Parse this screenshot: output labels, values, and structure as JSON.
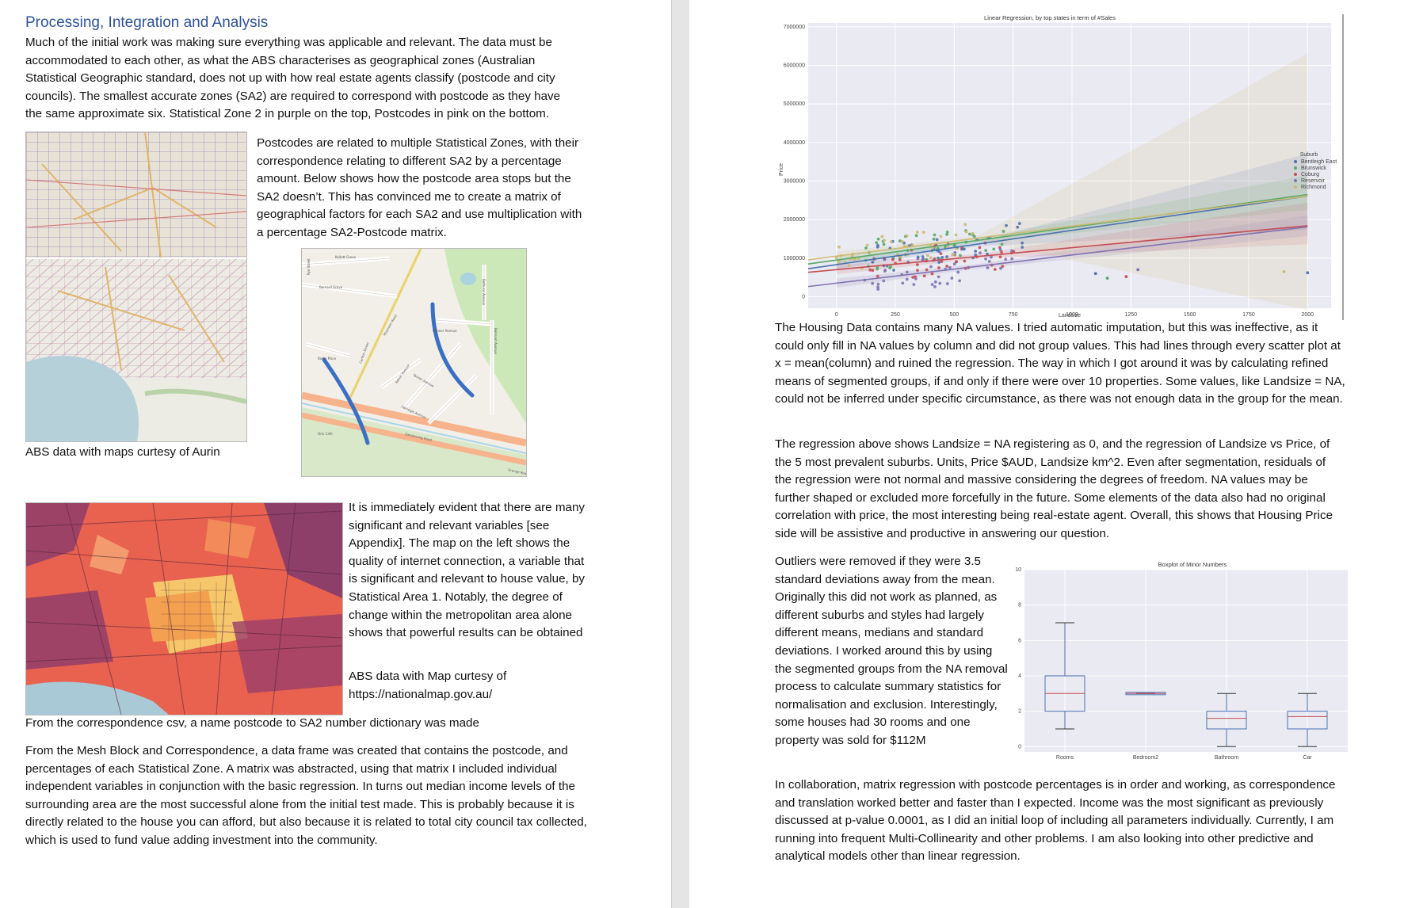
{
  "left": {
    "heading": "Processing, Integration and Analysis",
    "p1": "Much of the initial work was making sure everything was applicable and relevant. The data must be accommodated to each other, as what the ABS characterises as geographical zones (Australian Statistical Geographic standard, does not up with how real estate agents classify (postcode and city councils). The smallest accurate zones (SA2) are required to correspond with postcode as they have the same approximate six. Statistical Zone 2 in purple on the top, Postcodes in pink on the bottom.",
    "p2": "Postcodes are related to multiple Statistical Zones, with their correspondence relating to different SA2 by a percentage amount.  Below shows how the postcode area stops but the SA2 doesn’t. This has convinced me to create a matrix of geographical factors for each SA2 and use multiplication with a percentage SA2-Postcode matrix.",
    "caption1": "ABS data with maps curtesy of Aurin",
    "p3": "It is immediately evident that there are many significant and relevant variables [see Appendix]. The map on the left shows the quality of internet connection, a variable that is significant and relevant to house value, by Statistical Area 1. Notably, the degree of change within the metropolitan area alone shows that powerful results can be obtained",
    "caption2": "ABS data with Map curtesy of https://nationalmap.gov.au/",
    "p4": "From the correspondence csv, a name postcode to SA2 number dictionary was made",
    "p5": "From the Mesh Block and Correspondence, a data frame was created that contains the postcode, and percentages of each Statistical Zone. A matrix was abstracted, using that matrix I included individual independent variables in conjunction with the basic regression. In turns out median income levels of the surrounding area are the most successful alone from the initial test made. This is probably because it is directly related to the house you can afford, but also because it is related to total city council tax collected, which is used to fund value adding investment into the community.",
    "street_map": {
      "streets": [
        "Kellett Grove",
        "Barnard Grove",
        "Mountain Road",
        "Connor Avenue",
        "Kelvin Avenue",
        "Tanner Avenue",
        "Carnegie Avenue",
        "Dandenong Road",
        "Orix Cafe",
        "Grange Road",
        "Bodie Place",
        "Belmont Avenue",
        "Bethune Avenue",
        "Rye Street",
        "Carlton Street"
      ]
    }
  },
  "right": {
    "p1": "The Housing Data contains many NA values. I tried automatic imputation, but this was ineffective, as it could only fill in NA values by column and did not group values. This had lines through every scatter plot at x = mean(column) and ruined the regression. The way in which I got around it was by calculating refined means of segmented groups, if and only if there were over 10 properties. Some values, like Landsize = NA, could not be inferred under specific circumstance, as there was not enough data in the group for the mean.",
    "p2": "The regression above shows Landsize = NA registering as 0, and the regression of Landsize vs Price, of the 5 most prevalent suburbs. Units, Price $AUD, Landsize km^2. Even after segmentation, residuals of the regression were not normal and massive considering the degrees of freedom. NA values may be further shaped or excluded more forcefully in the future. Some elements of the data also had no original correlation with price, the most interesting being real-estate agent. Overall, this shows that Housing Price side will be assistive and productive in answering our question.",
    "p3": "Outliers were removed if they were 3.5 standard deviations away from the mean. Originally this did not work as planned, as different suburbs and styles had largely different means, medians and standard deviations. I worked around this by using the segmented groups from the NA removal process to calculate summary statistics for normalisation and exclusion. Interestingly, some houses had 30 rooms and one property was sold for $112M",
    "p4": "In collaboration, matrix regression with postcode percentages is in order and working, as correspondence and translation worked better and faster than I expected. Income was the most significant as previously discussed at p-value 0.0001, as I did an initial loop of including all parameters individually. Currently, I am running into frequent Multi-Collinearity and other problems. I am also looking into other predictive and analytical models other than linear regression."
  },
  "chart_data": [
    {
      "type": "scatter",
      "title": "Linear Regression, by top states in term of #Sales",
      "xlabel": "Landsize",
      "ylabel": "Price",
      "xlim": [
        -120,
        2100
      ],
      "ylim": [
        -300000,
        7100000
      ],
      "xticks": [
        0,
        250,
        500,
        750,
        1000,
        1250,
        1500,
        1750,
        2000
      ],
      "yticks": [
        0,
        1000000,
        2000000,
        3000000,
        4000000,
        5000000,
        6000000,
        7000000
      ],
      "legend_title": "Suburb",
      "legend_position": "right",
      "series": [
        {
          "name": "Bentleigh East",
          "color": "#4c72b0",
          "intercept": 830000,
          "slope": 890
        },
        {
          "name": "Brunswick",
          "color": "#55a868",
          "intercept": 950000,
          "slope": 850
        },
        {
          "name": "Coburg",
          "color": "#c44e52",
          "intercept": 700000,
          "slope": 570
        },
        {
          "name": "Reservoir",
          "color": "#8172b2",
          "intercept": 350000,
          "slope": 730
        },
        {
          "name": "Richmond",
          "color": "#ccb974",
          "intercept": 1050000,
          "slope": 780
        }
      ]
    },
    {
      "type": "box",
      "title": "Boxplot of Minor Numbers",
      "ylim": [
        -0.3,
        10
      ],
      "yticks": [
        0,
        2,
        4,
        6,
        8,
        10
      ],
      "categories": [
        "Rooms",
        "Bedroom2",
        "Bathroom",
        "Car"
      ],
      "boxes": [
        {
          "min": 1,
          "q1": 2,
          "median": 3,
          "q3": 4,
          "max": 7
        },
        {
          "min": 3,
          "q1": 3,
          "median": 3,
          "q3": 3,
          "max": 3
        },
        {
          "min": 0,
          "q1": 1,
          "median": 1.6,
          "q3": 2,
          "max": 3
        },
        {
          "min": 0,
          "q1": 1,
          "median": 1.7,
          "q3": 2,
          "max": 3
        }
      ]
    }
  ]
}
